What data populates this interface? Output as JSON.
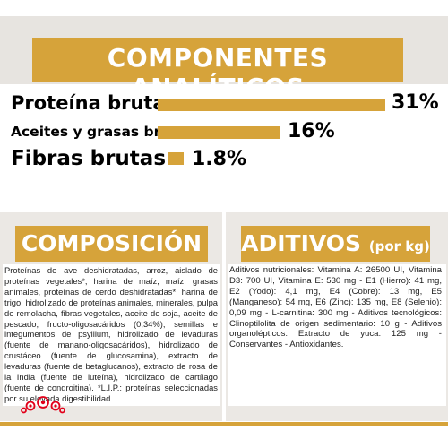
{
  "header": {
    "title": "COMPONENTES ANALÍTICOS"
  },
  "analytics": [
    {
      "label": "Proteína bruta",
      "value_text": "31%",
      "value": 31
    },
    {
      "label": "Aceites y grasas brutos",
      "value_text": "16%",
      "value": 16
    },
    {
      "label": "Fibras brutas",
      "value_text": "1.8%",
      "value": 1.8
    }
  ],
  "composicion": {
    "title": "COMPOSICIÓN",
    "text": "Proteínas de ave deshidratadas, arroz, aislado de proteínas vegetales*, harina de maíz, maíz, grasas animales, proteínas de cerdo deshidratadas*, harina de trigo, hidrolizado de proteínas animales, minerales, pulpa de remolacha, fibras vegetales, aceite de soja, aceite de pescado, fructo-oligosacáridos (0,34%), semillas e integumentos de psyllium, hidrolizado de levaduras (fuente de manano-oligosacáridos), hidrolizado de crustáceo (fuente de glucosamina), extracto de levaduras (fuente de betaglucanos), extracto de rosa de la India (fuente de luteína), hidrolizado de cartílago (fuente de condroitina). *L.I.P.: proteínas seleccionadas por su elevada digestibilidad."
  },
  "aditivos": {
    "title": "ADITIVOS",
    "title_suffix": "(por kg)",
    "text": "Aditivos nutricionales: Vitamina A: 26500 UI, Vitamina D3: 700 UI, Vitamina E: 530 mg - E1 (Hierro): 41 mg, E2 (Yodo): 4,1 mg, E4 (Cobre): 13 mg, E5 (Manganeso): 54 mg, E6 (Zinc): 135 mg, E8 (Selenio): 0,09 mg - L-carnitina: 300 mg - Aditivos tecnológicos: Clinoptilolita de origen sedimentario: 10 g - Aditivos organolépticos: Extracto de yuca: 125 mg - Conservantes - Antioxidantes."
  },
  "colors": {
    "gold": "#d6a33a",
    "panel_gray": "#ebe8e4",
    "brand_red": "#e2001a"
  },
  "logo": {
    "icon": "royal-canin-crown-logo"
  }
}
